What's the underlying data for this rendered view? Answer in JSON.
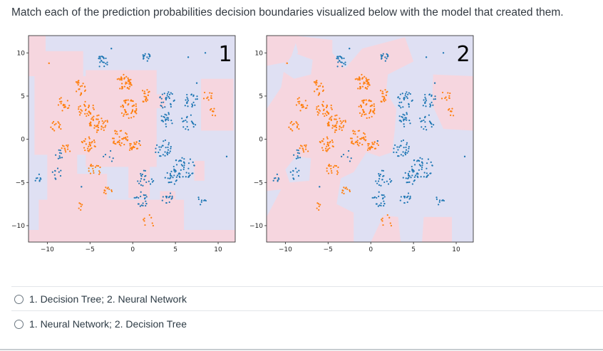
{
  "question": "Match each of the prediction probabilities decision boundaries visualized below with the model that created them.",
  "plots": [
    {
      "label": "1",
      "xticks": [
        "−10",
        "−5",
        "0",
        "5",
        "10"
      ],
      "yticks": [
        "10",
        "5",
        "0",
        "−5",
        "−10"
      ]
    },
    {
      "label": "2",
      "xticks": [
        "−10",
        "−5",
        "0",
        "5",
        "10"
      ],
      "yticks": [
        "10",
        "5",
        "0",
        "−5",
        "−10"
      ]
    }
  ],
  "colors": {
    "orange": "#ff7f0e",
    "blue": "#1f77b4",
    "bg_blue": "#dfe0f3",
    "bg_pink": "#f6d6df"
  },
  "options": [
    {
      "label": "1. Decision Tree; 2. Neural Network"
    },
    {
      "label": "1. Neural Network; 2. Decision Tree"
    }
  ]
}
